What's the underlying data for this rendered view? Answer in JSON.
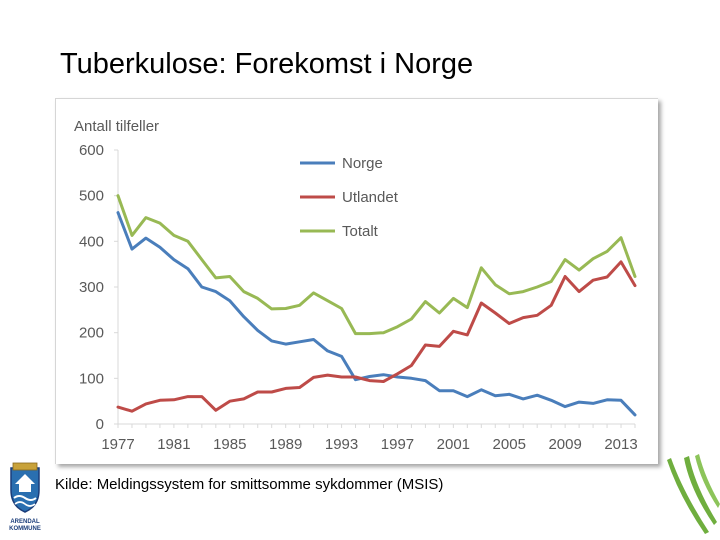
{
  "slide": {
    "title": "Tuberkulose: Forekomst i Norge",
    "source": "Kilde: Meldingssystem for smittsomme sykdommer (MSIS)"
  },
  "logo": {
    "line1": "ARENDAL",
    "line2": "KOMMUNE",
    "icon": "arendal-coat-of-arms-icon"
  },
  "colors": {
    "Norge": "#4a7ebb",
    "Utlandet": "#be4b48",
    "Totalt": "#98b954",
    "grid": "#d9d9d9",
    "axis_text": "#595959",
    "decor": "#6fae3e"
  },
  "chart_data": {
    "type": "line",
    "title": "",
    "ylabel": "Antall tilfeller",
    "xlabel": "",
    "ylim": [
      0,
      600
    ],
    "yticks": [
      0,
      100,
      200,
      300,
      400,
      500,
      600
    ],
    "xlim": [
      1977,
      2014
    ],
    "xticks": [
      1977,
      1981,
      1985,
      1989,
      1993,
      1997,
      2001,
      2005,
      2009,
      2013
    ],
    "grid": false,
    "legend": "top-center",
    "x": [
      1977,
      1978,
      1979,
      1980,
      1981,
      1982,
      1983,
      1984,
      1985,
      1986,
      1987,
      1988,
      1989,
      1990,
      1991,
      1992,
      1993,
      1994,
      1995,
      1996,
      1997,
      1998,
      1999,
      2000,
      2001,
      2002,
      2003,
      2004,
      2005,
      2006,
      2007,
      2008,
      2009,
      2010,
      2011,
      2012,
      2013,
      2014
    ],
    "series": [
      {
        "name": "Norge",
        "values": [
          463,
          383,
          407,
          387,
          360,
          340,
          300,
          290,
          270,
          235,
          205,
          182,
          175,
          180,
          185,
          160,
          148,
          97,
          104,
          108,
          103,
          100,
          95,
          73,
          73,
          60,
          75,
          62,
          65,
          55,
          63,
          52,
          38,
          48,
          45,
          53,
          52,
          20
        ]
      },
      {
        "name": "Utlandet",
        "values": [
          37,
          28,
          44,
          52,
          53,
          60,
          60,
          30,
          50,
          55,
          70,
          70,
          78,
          80,
          102,
          107,
          103,
          103,
          95,
          93,
          110,
          128,
          173,
          170,
          203,
          195,
          265,
          243,
          220,
          233,
          238,
          260,
          323,
          290,
          315,
          322,
          355,
          303
        ]
      },
      {
        "name": "Totalt",
        "values": [
          500,
          413,
          452,
          440,
          413,
          400,
          360,
          320,
          323,
          290,
          275,
          252,
          253,
          260,
          287,
          270,
          253,
          198,
          198,
          200,
          213,
          230,
          268,
          243,
          275,
          255,
          342,
          305,
          285,
          290,
          300,
          312,
          360,
          337,
          362,
          378,
          408,
          323
        ]
      }
    ]
  }
}
